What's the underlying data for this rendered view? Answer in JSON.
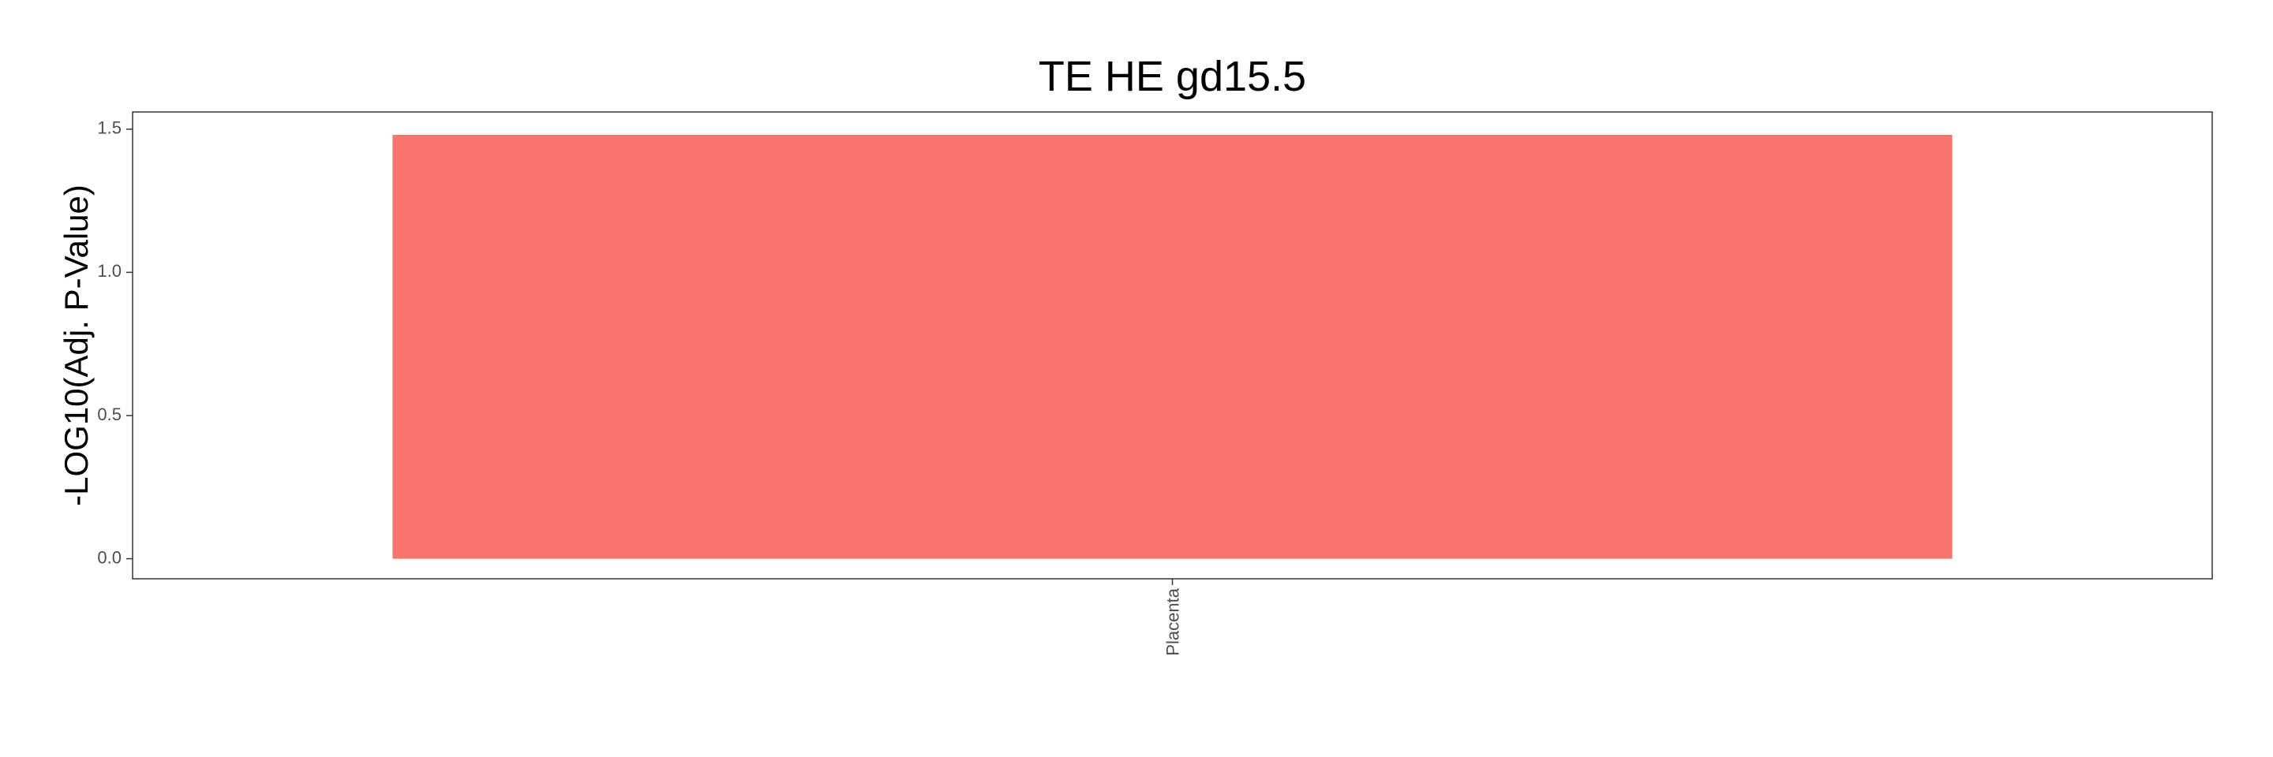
{
  "chart_data": {
    "type": "bar",
    "title": "TE HE gd15.5",
    "xlabel": "",
    "ylabel": "-LOG10(Adj. P-Value)",
    "categories": [
      "Placenta"
    ],
    "values": [
      1.48
    ],
    "ylim": [
      -0.07,
      1.56
    ],
    "yticks": [
      0.0,
      0.5,
      1.0,
      1.5
    ],
    "ytick_labels": [
      "0.0",
      "0.5",
      "1.0",
      "1.5"
    ],
    "bar_color": "#F8766D",
    "grid": false,
    "legend": "none"
  }
}
